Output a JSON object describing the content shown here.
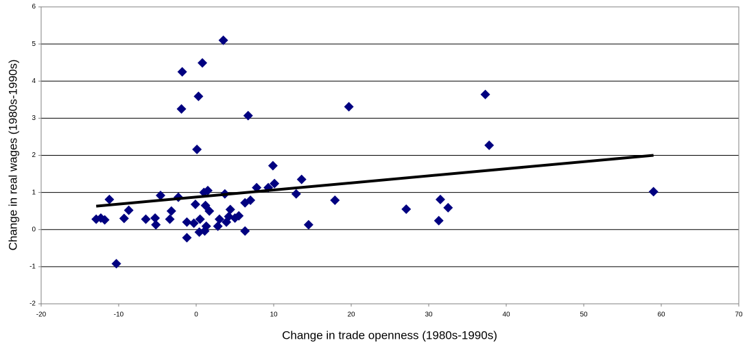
{
  "chart_data": {
    "type": "scatter",
    "xlabel": "Change in trade openness (1980s-1990s)",
    "ylabel": "Change in real wages (1980s-1990s)",
    "xlim": [
      -20,
      70
    ],
    "xticks": [
      -20,
      -10,
      0,
      10,
      20,
      30,
      40,
      50,
      60,
      70
    ],
    "ylim": [
      -2,
      6
    ],
    "yticks": [
      -2,
      -1,
      0,
      1,
      2,
      3,
      4,
      5,
      6
    ],
    "grid": true,
    "series": [
      {
        "color": "#000080",
        "x": [
          -12.9,
          -12.3,
          -11.8,
          -11.2,
          -10.3,
          -9.3,
          -8.7,
          -6.5,
          -5.3,
          -5.2,
          -4.6,
          -3.4,
          -3.2,
          -2.3,
          -1.9,
          -1.8,
          -1.2,
          -1.2,
          -0.3,
          -0.1,
          0.1,
          0.3,
          0.4,
          0.5,
          0.8,
          1.0,
          1.1,
          1.2,
          1.3,
          1.5,
          1.7,
          2.8,
          3.0,
          3.5,
          3.7,
          3.9,
          4.2,
          4.4,
          5.0,
          5.5,
          6.3,
          6.3,
          6.7,
          7.0,
          7.8,
          9.3,
          9.9,
          10.1,
          12.9,
          13.6,
          14.5,
          17.9,
          19.7,
          27.1,
          31.3,
          31.5,
          32.5,
          37.3,
          37.8,
          59.0
        ],
        "values": [
          0.28,
          0.31,
          0.26,
          0.81,
          -0.92,
          0.3,
          0.52,
          0.28,
          0.31,
          0.13,
          0.92,
          0.28,
          0.5,
          0.87,
          3.25,
          4.25,
          0.2,
          -0.22,
          0.17,
          0.68,
          2.16,
          3.59,
          -0.07,
          0.28,
          4.49,
          1.0,
          -0.04,
          0.65,
          0.09,
          1.05,
          0.5,
          0.09,
          0.28,
          5.1,
          0.96,
          0.2,
          0.35,
          0.54,
          0.31,
          0.37,
          0.72,
          -0.04,
          3.07,
          0.79,
          1.13,
          1.13,
          1.72,
          1.24,
          0.96,
          1.35,
          0.13,
          0.79,
          3.31,
          0.55,
          0.24,
          0.81,
          0.59,
          3.64,
          2.27,
          1.02
        ]
      }
    ],
    "trendline": {
      "color": "#000000",
      "x": [
        -12.9,
        59.0
      ],
      "values": [
        0.63,
        2.0
      ]
    }
  }
}
